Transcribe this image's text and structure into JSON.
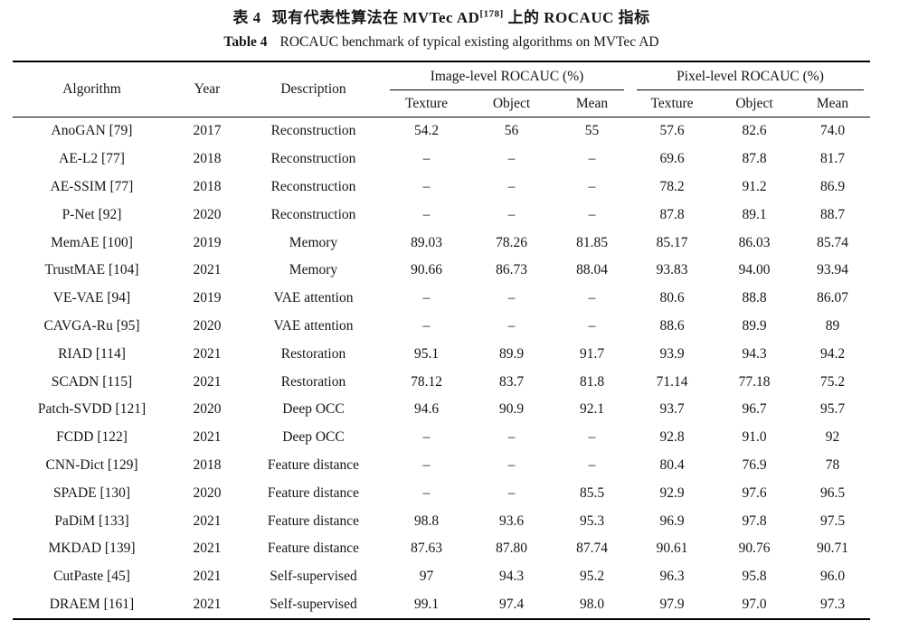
{
  "page": {
    "caption_zh": {
      "prefix": "表 4",
      "body": "现有代表性算法在 MVTec AD",
      "superscript": "[178]",
      "suffix": "上的 ROCAUC 指标"
    },
    "caption_en": {
      "label": "Table 4",
      "text": "ROCAUC benchmark of typical existing algorithms on MVTec AD"
    }
  },
  "table": {
    "col_headers": {
      "algorithm": "Algorithm",
      "year": "Year",
      "description": "Description"
    },
    "group_headers": {
      "image": "Image-level ROCAUC (%)",
      "pixel": "Pixel-level ROCAUC (%)"
    },
    "sub_headers": [
      "Texture",
      "Object",
      "Mean",
      "Texture",
      "Object",
      "Mean"
    ],
    "rows": [
      {
        "algorithm": "AnoGAN [79]",
        "year": "2017",
        "description": "Reconstruction",
        "image": [
          "54.2",
          "56",
          "55"
        ],
        "pixel": [
          "57.6",
          "82.6",
          "74.0"
        ]
      },
      {
        "algorithm": "AE-L2 [77]",
        "year": "2018",
        "description": "Reconstruction",
        "image": [
          "–",
          "–",
          "–"
        ],
        "pixel": [
          "69.6",
          "87.8",
          "81.7"
        ]
      },
      {
        "algorithm": "AE-SSIM [77]",
        "year": "2018",
        "description": "Reconstruction",
        "image": [
          "–",
          "–",
          "–"
        ],
        "pixel": [
          "78.2",
          "91.2",
          "86.9"
        ]
      },
      {
        "algorithm": "P-Net [92]",
        "year": "2020",
        "description": "Reconstruction",
        "image": [
          "–",
          "–",
          "–"
        ],
        "pixel": [
          "87.8",
          "89.1",
          "88.7"
        ]
      },
      {
        "algorithm": "MemAE [100]",
        "year": "2019",
        "description": "Memory",
        "image": [
          "89.03",
          "78.26",
          "81.85"
        ],
        "pixel": [
          "85.17",
          "86.03",
          "85.74"
        ]
      },
      {
        "algorithm": "TrustMAE [104]",
        "year": "2021",
        "description": "Memory",
        "image": [
          "90.66",
          "86.73",
          "88.04"
        ],
        "pixel": [
          "93.83",
          "94.00",
          "93.94"
        ]
      },
      {
        "algorithm": "VE-VAE [94]",
        "year": "2019",
        "description": "VAE attention",
        "image": [
          "–",
          "–",
          "–"
        ],
        "pixel": [
          "80.6",
          "88.8",
          "86.07"
        ]
      },
      {
        "algorithm": "CAVGA-Ru [95]",
        "year": "2020",
        "description": "VAE attention",
        "image": [
          "–",
          "–",
          "–"
        ],
        "pixel": [
          "88.6",
          "89.9",
          "89"
        ]
      },
      {
        "algorithm": "RIAD [114]",
        "year": "2021",
        "description": "Restoration",
        "image": [
          "95.1",
          "89.9",
          "91.7"
        ],
        "pixel": [
          "93.9",
          "94.3",
          "94.2"
        ]
      },
      {
        "algorithm": "SCADN [115]",
        "year": "2021",
        "description": "Restoration",
        "image": [
          "78.12",
          "83.7",
          "81.8"
        ],
        "pixel": [
          "71.14",
          "77.18",
          "75.2"
        ]
      },
      {
        "algorithm": "Patch-SVDD [121]",
        "year": "2020",
        "description": "Deep OCC",
        "image": [
          "94.6",
          "90.9",
          "92.1"
        ],
        "pixel": [
          "93.7",
          "96.7",
          "95.7"
        ]
      },
      {
        "algorithm": "FCDD [122]",
        "year": "2021",
        "description": "Deep OCC",
        "image": [
          "–",
          "–",
          "–"
        ],
        "pixel": [
          "92.8",
          "91.0",
          "92"
        ]
      },
      {
        "algorithm": "CNN-Dict [129]",
        "year": "2018",
        "description": "Feature distance",
        "image": [
          "–",
          "–",
          "–"
        ],
        "pixel": [
          "80.4",
          "76.9",
          "78"
        ]
      },
      {
        "algorithm": "SPADE [130]",
        "year": "2020",
        "description": "Feature distance",
        "image": [
          "–",
          "–",
          "85.5"
        ],
        "pixel": [
          "92.9",
          "97.6",
          "96.5"
        ]
      },
      {
        "algorithm": "PaDiM [133]",
        "year": "2021",
        "description": "Feature distance",
        "image": [
          "98.8",
          "93.6",
          "95.3"
        ],
        "pixel": [
          "96.9",
          "97.8",
          "97.5"
        ]
      },
      {
        "algorithm": "MKDAD [139]",
        "year": "2021",
        "description": "Feature distance",
        "image": [
          "87.63",
          "87.80",
          "87.74"
        ],
        "pixel": [
          "90.61",
          "90.76",
          "90.71"
        ]
      },
      {
        "algorithm": "CutPaste [45]",
        "year": "2021",
        "description": "Self-supervised",
        "image": [
          "97",
          "94.3",
          "95.2"
        ],
        "pixel": [
          "96.3",
          "95.8",
          "96.0"
        ]
      },
      {
        "algorithm": "DRAEM [161]",
        "year": "2021",
        "description": "Self-supervised",
        "image": [
          "99.1",
          "97.4",
          "98.0"
        ],
        "pixel": [
          "97.9",
          "97.0",
          "97.3"
        ]
      }
    ]
  }
}
